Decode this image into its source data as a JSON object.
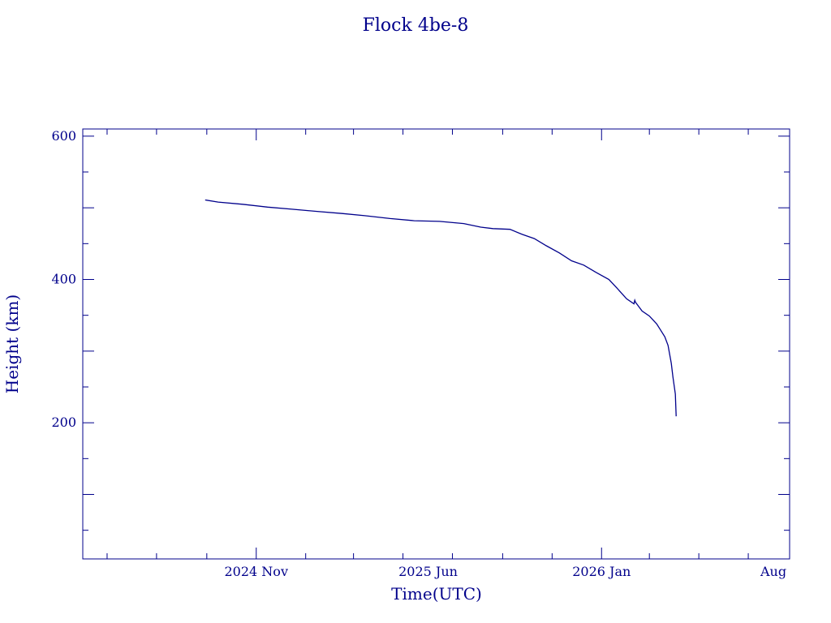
{
  "chart_data": {
    "type": "line",
    "title": "Flock 4be-8",
    "xlabel": "Time(UTC)",
    "ylabel": "Height (km)",
    "x_tick_labels": [
      {
        "date": "2024-11-01",
        "label": "2024 Nov"
      },
      {
        "date": "2025-06-01",
        "label": "2025 Jun"
      },
      {
        "date": "2026-01-01",
        "label": "2026 Jan"
      },
      {
        "date": "2026-08-01",
        "label": "Aug"
      }
    ],
    "y_tick_labels": [
      200,
      400,
      600
    ],
    "xlim": [
      "2024-04-01",
      "2026-08-21"
    ],
    "ylim": [
      10,
      610
    ],
    "grid": false,
    "color": "#00008b",
    "series": [
      {
        "x": [
          "2024-08-30",
          "2024-09-15",
          "2024-10-15",
          "2024-11-15",
          "2024-12-15",
          "2025-01-15",
          "2025-02-15",
          "2025-03-15",
          "2025-04-15",
          "2025-05-15",
          "2025-06-15",
          "2025-07-15",
          "2025-08-05",
          "2025-08-20",
          "2025-09-10",
          "2025-09-25",
          "2025-10-10",
          "2025-10-25",
          "2025-11-10",
          "2025-11-25",
          "2025-12-10",
          "2025-12-25",
          "2026-01-10",
          "2026-01-20",
          "2026-02-01",
          "2026-02-10",
          "2026-02-11",
          "2026-02-12",
          "2026-02-14",
          "2026-02-20",
          "2026-03-01",
          "2026-03-10",
          "2026-03-15",
          "2026-03-20",
          "2026-03-24",
          "2026-03-28",
          "2026-03-30",
          "2026-04-02",
          "2026-04-03"
        ],
        "y": [
          511,
          508,
          505,
          501,
          498,
          495,
          492,
          489,
          485,
          482,
          481,
          478,
          473,
          471,
          470,
          463,
          457,
          447,
          437,
          426,
          420,
          410,
          400,
          388,
          373,
          366,
          371,
          368,
          365,
          356,
          349,
          338,
          329,
          320,
          308,
          283,
          264,
          240,
          209
        ]
      }
    ]
  }
}
